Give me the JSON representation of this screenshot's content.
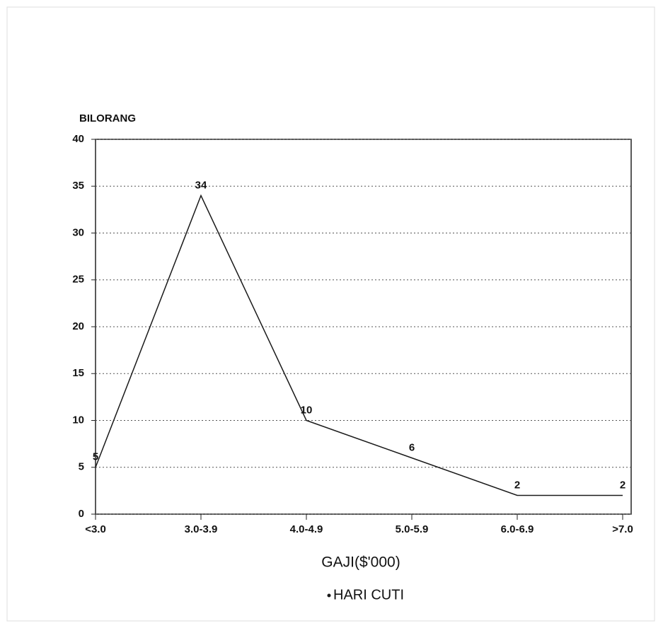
{
  "chart_data": {
    "type": "line",
    "y_label": "BILORANG",
    "x_label": "GAJI($'000)",
    "categories": [
      "<3.0",
      "3.0-3.9",
      "4.0-4.9",
      "5.0-5.9",
      "6.0-6.9",
      ">7.0"
    ],
    "series": [
      {
        "name": "HARI CUTI",
        "color": "#1a1a1a",
        "values": [
          5,
          34,
          10,
          6,
          2,
          2
        ]
      }
    ],
    "ylim": [
      0,
      40
    ],
    "yticks": [
      0,
      5,
      10,
      15,
      20,
      25,
      30,
      35,
      40
    ],
    "grid": true,
    "legend": "bottom"
  }
}
